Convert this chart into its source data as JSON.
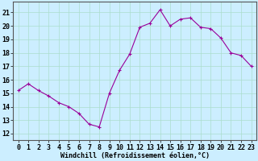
{
  "x": [
    0,
    1,
    2,
    3,
    4,
    5,
    6,
    7,
    8,
    9,
    10,
    11,
    12,
    13,
    14,
    15,
    16,
    17,
    18,
    19,
    20,
    21,
    22,
    23
  ],
  "y": [
    15.2,
    15.7,
    15.2,
    14.8,
    14.3,
    14.0,
    13.5,
    12.7,
    12.5,
    15.0,
    16.7,
    17.9,
    19.9,
    20.2,
    21.2,
    20.0,
    20.5,
    20.6,
    19.9,
    19.8,
    19.1,
    18.0,
    17.8,
    17.0
  ],
  "line_color": "#990099",
  "marker": "+",
  "marker_size": 3,
  "marker_linewidth": 0.8,
  "bg_color": "#cceeff",
  "grid_color": "#aaddcc",
  "xlabel": "Windchill (Refroidissement éolien,°C)",
  "ylabel_ticks": [
    12,
    13,
    14,
    15,
    16,
    17,
    18,
    19,
    20,
    21
  ],
  "ylim": [
    11.5,
    21.8
  ],
  "xlim": [
    -0.5,
    23.5
  ],
  "xlabel_fontsize": 6,
  "tick_fontsize": 6
}
